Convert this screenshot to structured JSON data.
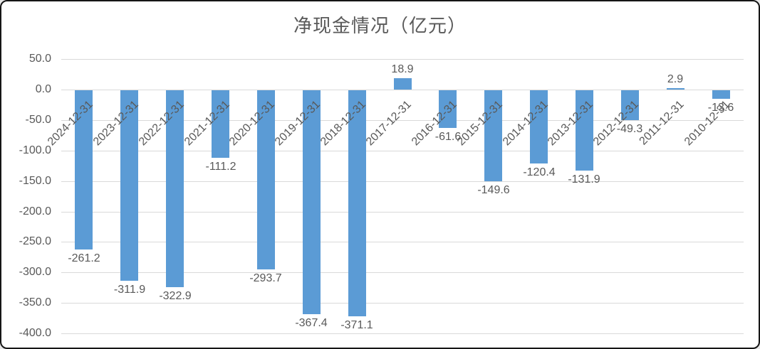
{
  "frame": {
    "background": "#ffffff",
    "border_color": "#161616"
  },
  "chart_data": {
    "type": "bar",
    "title": "净现金情况（亿元）",
    "title_color": "#595959",
    "categories": [
      "2024-12-31",
      "2023-12-31",
      "2022-12-31",
      "2021-12-31",
      "2020-12-31",
      "2019-12-31",
      "2018-12-31",
      "2017-12-31",
      "2016-12-31",
      "2015-12-31",
      "2014-12-31",
      "2013-12-31",
      "2012-12-31",
      "2011-12-31",
      "2010-12-31"
    ],
    "values": [
      -261.2,
      -311.9,
      -322.9,
      -111.2,
      -293.7,
      -367.4,
      -371.1,
      18.9,
      -61.6,
      -149.6,
      -120.4,
      -131.9,
      -49.3,
      2.9,
      -13.6
    ],
    "value_labels": [
      "-261.2",
      "-311.9",
      "-322.9",
      "-111.2",
      "-293.7",
      "-367.4",
      "-371.1",
      "18.9",
      "-61.6",
      "-149.6",
      "-120.4",
      "-131.9",
      "-49.3",
      "2.9",
      "-13.6"
    ],
    "yticks": [
      "50.0",
      "0.0",
      "-50.0",
      "-100.0",
      "-150.0",
      "-200.0",
      "-250.0",
      "-300.0",
      "-350.0",
      "-400.0"
    ],
    "ytick_values": [
      50,
      0,
      -50,
      -100,
      -150,
      -200,
      -250,
      -300,
      -350,
      -400
    ],
    "ylim": [
      -400,
      50
    ],
    "xlabel": "",
    "ylabel": "",
    "grid": true,
    "legend": "none",
    "bar_color": "#5B9BD5",
    "gridline_color": "#D9D9D9",
    "axis_label_color": "#595959",
    "value_label_color": "#595959"
  }
}
